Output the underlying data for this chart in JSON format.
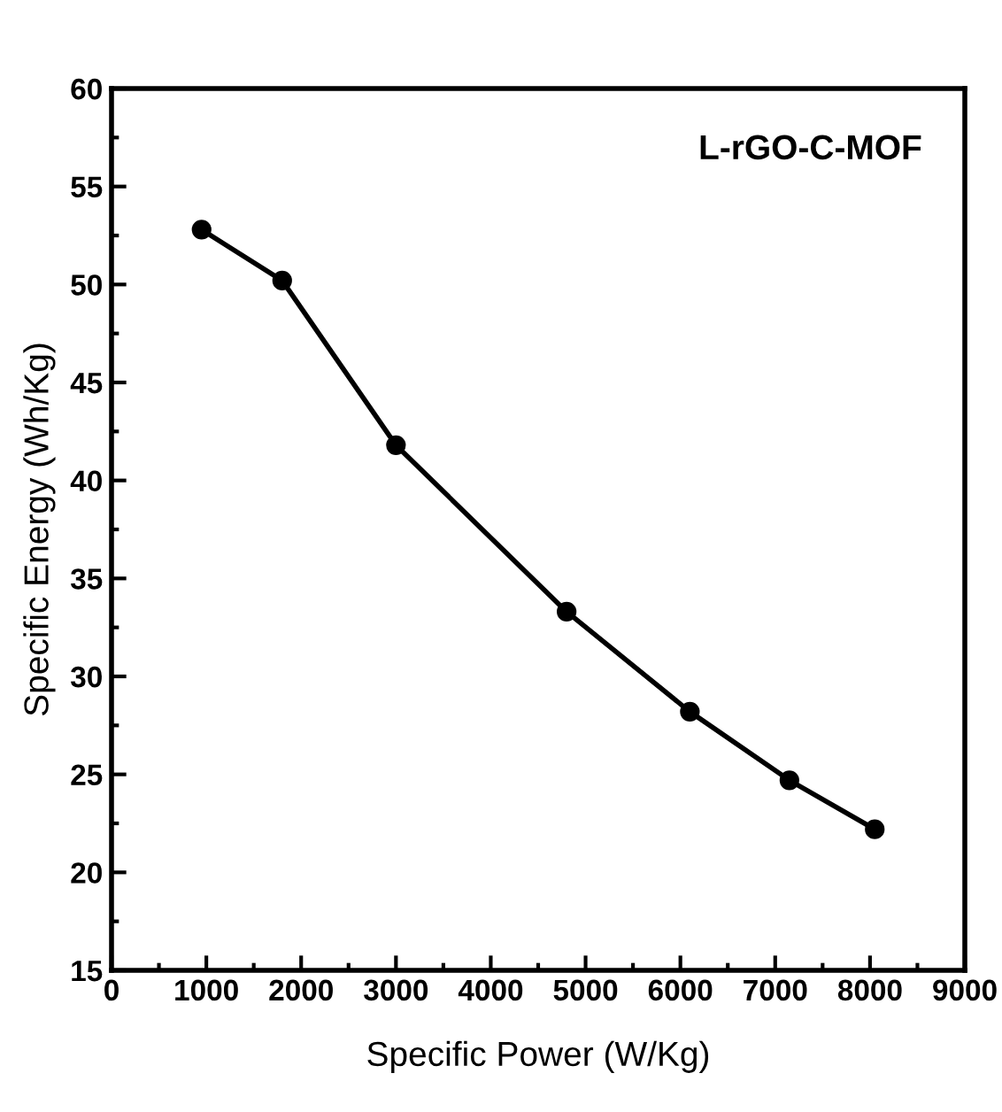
{
  "chart_data": {
    "type": "line",
    "xlabel": "Specific Power (W/Kg)",
    "ylabel": "Specific Energy (Wh/Kg)",
    "annotations": [
      "L-rGO-C-MOF"
    ],
    "x": [
      950,
      1800,
      3000,
      4800,
      6100,
      7150,
      8050
    ],
    "series": [
      {
        "color": "#000000",
        "values": [
          52.8,
          50.2,
          41.8,
          33.3,
          28.2,
          24.7,
          22.2
        ]
      }
    ],
    "xlim": [
      0,
      9000
    ],
    "xticks": [
      0,
      1000,
      2000,
      3000,
      4000,
      5000,
      6000,
      7000,
      8000,
      9000
    ],
    "ylim": [
      15,
      60
    ],
    "yticks": [
      15,
      20,
      25,
      30,
      35,
      40,
      45,
      50,
      55,
      60
    ],
    "grid": false,
    "legend": false,
    "marker": "circle",
    "line_style": "solid"
  }
}
